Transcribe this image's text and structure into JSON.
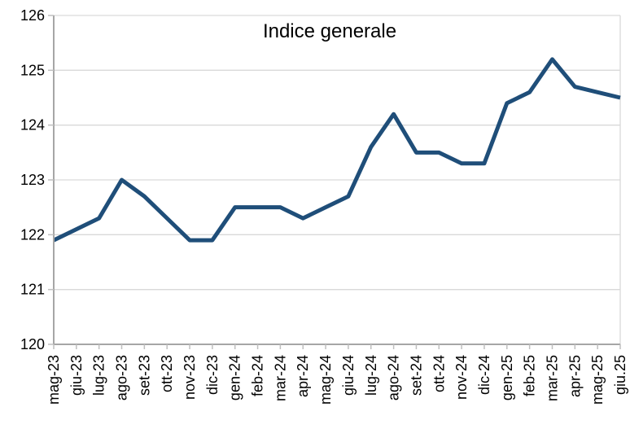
{
  "chart_data": {
    "type": "line",
    "title": "Indice generale",
    "categories": [
      "mag-23",
      "giu-23",
      "lug-23",
      "ago-23",
      "set-23",
      "ott-23",
      "nov-23",
      "dic-23",
      "gen-24",
      "feb-24",
      "mar-24",
      "apr-24",
      "mag-24",
      "giu-24",
      "lug-24",
      "ago-24",
      "set-24",
      "ott-24",
      "nov-24",
      "dic-24",
      "gen-25",
      "feb-25",
      "mar-25",
      "apr-25",
      "mag-25",
      "giu.25"
    ],
    "values": [
      121.9,
      122.1,
      122.3,
      123.0,
      122.7,
      122.3,
      121.9,
      121.9,
      122.5,
      122.5,
      122.5,
      122.3,
      122.5,
      122.7,
      123.6,
      124.2,
      123.5,
      123.5,
      123.3,
      123.3,
      124.4,
      124.6,
      125.2,
      124.7,
      124.6,
      124.5
    ],
    "xlabel": "",
    "ylabel": "",
    "ylim": [
      120,
      126
    ],
    "yticks": [
      120,
      121,
      122,
      123,
      124,
      125,
      126
    ],
    "grid": true,
    "legend": "none",
    "colors": {
      "line": "#1F4E79",
      "grid": "#D9D9D9",
      "axis": "#A6A6A6",
      "tick": "#BFBFBF",
      "text": "#000000",
      "background": "#FFFFFF"
    }
  }
}
